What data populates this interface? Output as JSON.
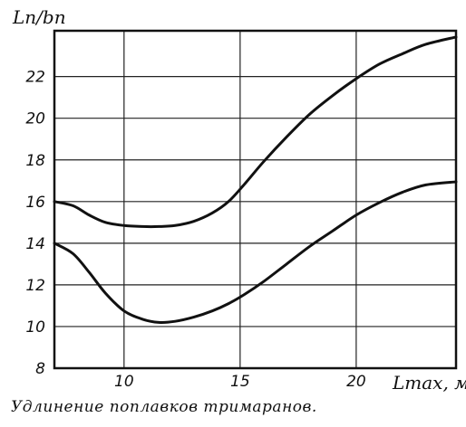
{
  "chart_data": {
    "type": "area",
    "ylabel": "Lп/bп",
    "xlabel": "Lmax, м",
    "xlim": [
      7,
      24.3
    ],
    "ylim": [
      8,
      24.2
    ],
    "x_ticks": [
      10,
      15,
      20
    ],
    "y_ticks": [
      8,
      10,
      12,
      14,
      16,
      18,
      20,
      22
    ],
    "grid": true,
    "series": [
      {
        "values": [
          [
            7.0,
            16.0
          ],
          [
            7.8,
            15.8
          ],
          [
            8.5,
            15.35
          ],
          [
            9.2,
            15.0
          ],
          [
            10.0,
            14.85
          ],
          [
            10.8,
            14.8
          ],
          [
            11.5,
            14.8
          ],
          [
            12.2,
            14.85
          ],
          [
            13.0,
            15.05
          ],
          [
            13.8,
            15.45
          ],
          [
            14.5,
            16.0
          ],
          [
            15.2,
            16.85
          ],
          [
            16.0,
            17.9
          ],
          [
            17.0,
            19.1
          ],
          [
            18.0,
            20.2
          ],
          [
            19.0,
            21.1
          ],
          [
            20.0,
            21.9
          ],
          [
            21.0,
            22.6
          ],
          [
            22.0,
            23.1
          ],
          [
            23.0,
            23.55
          ],
          [
            24.3,
            23.9
          ]
        ]
      },
      {
        "values": [
          [
            7.0,
            14.0
          ],
          [
            7.8,
            13.5
          ],
          [
            8.5,
            12.6
          ],
          [
            9.2,
            11.6
          ],
          [
            10.0,
            10.75
          ],
          [
            10.8,
            10.35
          ],
          [
            11.5,
            10.2
          ],
          [
            12.2,
            10.25
          ],
          [
            13.0,
            10.45
          ],
          [
            13.8,
            10.75
          ],
          [
            14.5,
            11.1
          ],
          [
            15.2,
            11.55
          ],
          [
            16.0,
            12.15
          ],
          [
            17.0,
            13.0
          ],
          [
            18.0,
            13.85
          ],
          [
            19.0,
            14.6
          ],
          [
            20.0,
            15.35
          ],
          [
            21.0,
            15.95
          ],
          [
            22.0,
            16.45
          ],
          [
            23.0,
            16.8
          ],
          [
            24.3,
            16.95
          ]
        ]
      }
    ]
  },
  "caption": "Удлинение поплавков тримаранов."
}
